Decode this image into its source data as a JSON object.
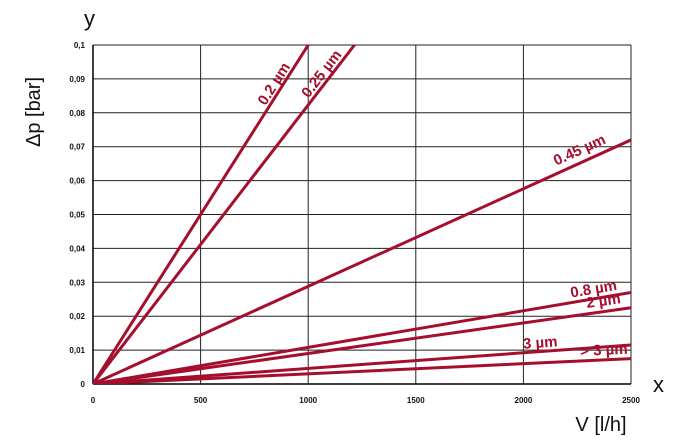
{
  "chart_data": {
    "type": "line",
    "title": "",
    "x_axis_letter": "x",
    "y_axis_letter": "y",
    "xlabel": "V [l/h]",
    "ylabel": "Δp [bar]",
    "xlim": [
      0,
      2500
    ],
    "ylim": [
      0,
      0.1
    ],
    "x_ticks": [
      0,
      500,
      1000,
      1500,
      2000,
      2500
    ],
    "x_tick_labels": [
      "0",
      "500",
      "1000",
      "1500",
      "2000",
      "2500"
    ],
    "y_ticks": [
      0,
      0.01,
      0.02,
      0.03,
      0.04,
      0.05,
      0.06,
      0.07,
      0.08,
      0.09,
      0.1
    ],
    "y_tick_labels": [
      "0",
      "0,01",
      "0,02",
      "0,03",
      "0,04",
      "0,05",
      "0,06",
      "0,07",
      "0,08",
      "0,09",
      "0,1"
    ],
    "grid": true,
    "line_color": "#a50f2d",
    "series": [
      {
        "name": "0.2 µm",
        "x": [
          0,
          1000
        ],
        "y": [
          0,
          0.1
        ]
      },
      {
        "name": "0.25 µm",
        "x": [
          0,
          1215
        ],
        "y": [
          0,
          0.1
        ]
      },
      {
        "name": "0.45 µm",
        "x": [
          0,
          2500
        ],
        "y": [
          0,
          0.072
        ]
      },
      {
        "name": "0.8 µm",
        "x": [
          0,
          2500
        ],
        "y": [
          0,
          0.027
        ]
      },
      {
        "name": "2 µm",
        "x": [
          0,
          2500
        ],
        "y": [
          0,
          0.0225
        ]
      },
      {
        "name": "3 µm",
        "x": [
          0,
          2500
        ],
        "y": [
          0,
          0.0115
        ]
      },
      {
        "name": "> 3 µm",
        "x": [
          0,
          2500
        ],
        "y": [
          0,
          0.0075
        ]
      }
    ]
  }
}
